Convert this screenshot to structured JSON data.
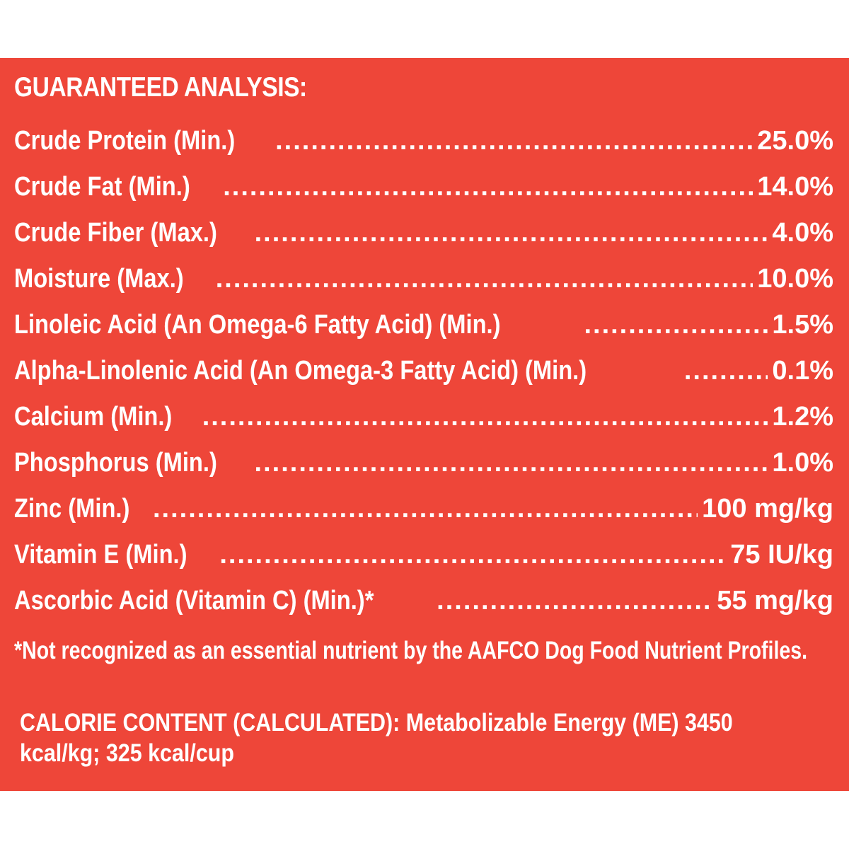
{
  "document": {
    "heading": "GUARANTEED ANALYSIS:",
    "rows": [
      {
        "label": "Crude Protein (Min.)",
        "value": "25.0%"
      },
      {
        "label": "Crude Fat (Min.)",
        "value": "14.0%"
      },
      {
        "label": "Crude Fiber (Max.)",
        "value": "4.0%"
      },
      {
        "label": "Moisture (Max.)",
        "value": "10.0%"
      },
      {
        "label": "Linoleic Acid (An Omega-6 Fatty Acid) (Min.)",
        "value": "1.5%"
      },
      {
        "label": "Alpha-Linolenic Acid (An Omega-3 Fatty Acid) (Min.)",
        "value": "0.1%"
      },
      {
        "label": "Calcium (Min.)",
        "value": "1.2%"
      },
      {
        "label": "Phosphorus (Min.)",
        "value": "1.0%"
      },
      {
        "label": "Zinc (Min.)",
        "value": "100 mg/kg"
      },
      {
        "label": "Vitamin E (Min.)",
        "value": "75 IU/kg"
      },
      {
        "label": "Ascorbic Acid (Vitamin C) (Min.)*",
        "value": "55 mg/kg"
      }
    ],
    "footnote": "*Not recognized as an essential nutrient by the AAFCO Dog Food Nutrient Profiles.",
    "calorie_content": "CALORIE CONTENT (CALCULATED): Metabolizable Energy (ME) 3450 kcal/kg; 325 kcal/cup"
  },
  "colors": {
    "panel_background": "#ee4639",
    "text": "#ffffff",
    "page_background": "#ffffff"
  }
}
